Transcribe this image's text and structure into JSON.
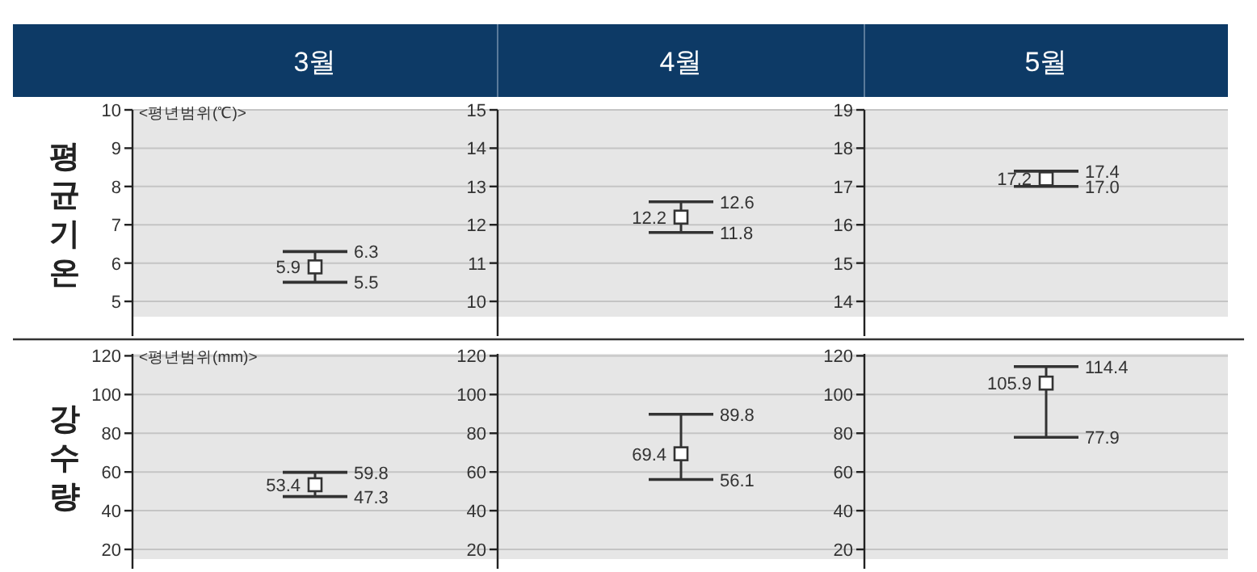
{
  "chart_data": [
    {
      "type": "scatter",
      "title": "3월",
      "subtitle": "<평년범위(℃)>",
      "ylabel": "평균기온",
      "categories": [
        null
      ],
      "values": [
        5.9
      ],
      "errors": [
        [
          5.5,
          6.3
        ]
      ],
      "color": "#333333",
      "marker": "square",
      "data_labels": true,
      "ylim": [
        4.6,
        10
      ],
      "yticks": [
        5,
        6,
        7,
        8,
        9,
        10
      ],
      "grid": "y",
      "annotations": [
        "6.3",
        "5.5"
      ]
    },
    {
      "type": "scatter",
      "title": "4월",
      "categories": [
        null
      ],
      "values": [
        12.2
      ],
      "errors": [
        [
          11.8,
          12.6
        ]
      ],
      "color": "#333333",
      "marker": "square",
      "data_labels": true,
      "ylim": [
        9.6,
        15
      ],
      "yticks": [
        10,
        11,
        12,
        13,
        14,
        15
      ],
      "grid": "y",
      "annotations": [
        "12.6",
        "11.8"
      ]
    },
    {
      "type": "scatter",
      "title": "5월",
      "categories": [
        null
      ],
      "values": [
        17.2
      ],
      "errors": [
        [
          17.0,
          17.4
        ]
      ],
      "color": "#333333",
      "marker": "square",
      "data_labels": true,
      "ylim": [
        13.6,
        19
      ],
      "yticks": [
        14,
        15,
        16,
        17,
        18,
        19
      ],
      "grid": "y",
      "annotations": [
        "17.4",
        "17.0"
      ]
    },
    {
      "type": "scatter",
      "subtitle": "<평년범위(mm)>",
      "ylabel": "강수량",
      "categories": [
        null
      ],
      "values": [
        53.4
      ],
      "errors": [
        [
          47.3,
          59.8
        ]
      ],
      "color": "#333333",
      "marker": "square",
      "data_labels": true,
      "ylim": [
        15,
        121
      ],
      "yticks": [
        20,
        40,
        60,
        80,
        100,
        120
      ],
      "grid": "y",
      "annotations": [
        "59.8",
        "47.3"
      ]
    },
    {
      "type": "scatter",
      "categories": [
        null
      ],
      "values": [
        69.4
      ],
      "errors": [
        [
          56.1,
          89.8
        ]
      ],
      "color": "#333333",
      "marker": "square",
      "data_labels": true,
      "ylim": [
        15,
        121
      ],
      "yticks": [
        20,
        40,
        60,
        80,
        100,
        120
      ],
      "grid": "y",
      "annotations": [
        "89.8",
        "56.1"
      ]
    },
    {
      "type": "scatter",
      "categories": [
        null
      ],
      "values": [
        105.9
      ],
      "errors": [
        [
          77.9,
          114.4
        ]
      ],
      "color": "#333333",
      "marker": "square",
      "data_labels": true,
      "ylim": [
        15,
        121
      ],
      "yticks": [
        20,
        40,
        60,
        80,
        100,
        120
      ],
      "grid": "y",
      "annotations": [
        "114.4",
        "77.9"
      ]
    }
  ]
}
